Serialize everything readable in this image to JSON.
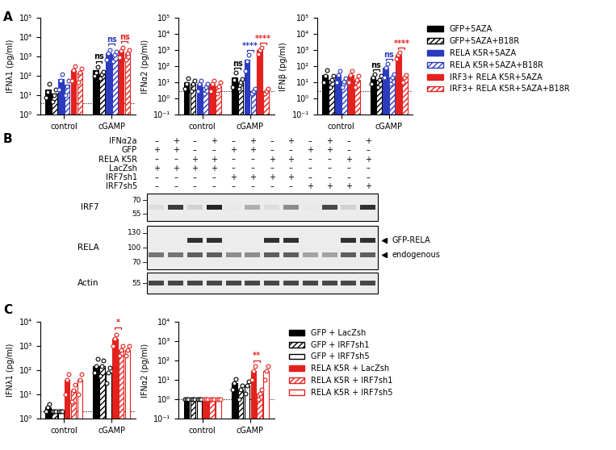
{
  "panel_labels": [
    "A",
    "B",
    "C"
  ],
  "chart_data": [
    {
      "type": "bar",
      "log": "y",
      "ylabel": "IFNλ1 (pg/ml)",
      "categories": [
        "control",
        "cGAMP"
      ],
      "ylim": [
        1,
        100000
      ],
      "yticks": [
        {
          "value": 1,
          "label": "10⁰"
        },
        {
          "value": 10,
          "label": "10¹"
        },
        {
          "value": 100,
          "label": "10²"
        },
        {
          "value": 1000,
          "label": "10³"
        },
        {
          "value": 10000,
          "label": "10⁴"
        },
        {
          "value": 100000,
          "label": "10⁵"
        }
      ],
      "detection_limit": 4,
      "series": [
        {
          "name": "GFP+5AZA",
          "color": "#000000",
          "line_style": "solid",
          "values": [
            20,
            200
          ],
          "points": [
            [
              8,
              15,
              40
            ],
            [
              100,
              150,
              300
            ]
          ]
        },
        {
          "name": "GFP+5AZA+B18R",
          "color": "#000000",
          "line_style": "hatched",
          "values": [
            12,
            120
          ],
          "points": [
            [
              5,
              10,
              20
            ],
            [
              80,
              120,
              160
            ]
          ]
        },
        {
          "name": "RELA K5R+5AZA",
          "color": "#2b3bbf",
          "line_style": "solid",
          "values": [
            70,
            1500
          ],
          "points": [
            [
              20,
              60,
              130
            ],
            [
              700,
              1500,
              2300
            ]
          ]
        },
        {
          "name": "RELA K5R+5AZA+B18R",
          "color": "#2b3bbf",
          "line_style": "hatched",
          "values": [
            35,
            1200
          ],
          "points": [
            [
              10,
              30,
              60
            ],
            [
              600,
              1200,
              1800
            ]
          ]
        },
        {
          "name": "IRF3+ RELA K5R+5AZA",
          "color": "#e3221d",
          "line_style": "solid",
          "values": [
            200,
            2000
          ],
          "points": [
            [
              60,
              200,
              340
            ],
            [
              900,
              2000,
              3100
            ]
          ]
        },
        {
          "name": "IRF3+ RELA K5R+5AZA+B18R",
          "color": "#e3221d",
          "line_style": "hatched",
          "values": [
            150,
            1500
          ],
          "points": [
            [
              50,
              150,
              250
            ],
            [
              700,
              1500,
              2300
            ]
          ]
        }
      ],
      "significance": [
        {
          "category": "cGAMP",
          "from": 0,
          "to": 1,
          "label": "ns"
        },
        {
          "category": "cGAMP",
          "from": 2,
          "to": 3,
          "label": "ns"
        },
        {
          "category": "cGAMP",
          "from": 4,
          "to": 5,
          "label": "ns"
        }
      ]
    },
    {
      "type": "bar",
      "log": "y",
      "ylabel": "IFNα2 (pg/ml)",
      "categories": [
        "control",
        "cGAMP"
      ],
      "ylim": [
        0.1,
        100000
      ],
      "yticks": [
        {
          "value": 0.1,
          "label": "10⁻¹"
        },
        {
          "value": 1,
          "label": "10⁰"
        },
        {
          "value": 10,
          "label": "10¹"
        },
        {
          "value": 100,
          "label": "10²"
        },
        {
          "value": 1000,
          "label": "10³"
        },
        {
          "value": 10000,
          "label": "10⁴"
        },
        {
          "value": 100000,
          "label": "10⁵"
        }
      ],
      "detection_limit": 3,
      "series": [
        {
          "name": "GFP+5AZA",
          "color": "#000000",
          "line_style": "solid",
          "values": [
            10,
            20
          ],
          "points": [
            [
              4,
              8,
              18
            ],
            [
              5,
              15,
              40
            ]
          ]
        },
        {
          "name": "GFP+5AZA+B18R",
          "color": "#000000",
          "line_style": "hatched",
          "values": [
            8,
            10
          ],
          "points": [
            [
              3,
              8,
              13
            ],
            [
              4,
              10,
              16
            ]
          ]
        },
        {
          "name": "RELA K5R+5AZA",
          "color": "#2b3bbf",
          "line_style": "solid",
          "values": [
            8,
            250
          ],
          "points": [
            [
              3,
              8,
              13
            ],
            [
              50,
              200,
              500
            ]
          ]
        },
        {
          "name": "RELA K5R+5AZA+B18R",
          "color": "#2b3bbf",
          "line_style": "hatched",
          "values": [
            5,
            3
          ],
          "points": [
            [
              2,
              5,
              8
            ],
            [
              2,
              3,
              4
            ]
          ]
        },
        {
          "name": "IRF3+ RELA K5R+5AZA",
          "color": "#e3221d",
          "line_style": "solid",
          "values": [
            8,
            1000
          ],
          "points": [
            [
              3,
              8,
              13
            ],
            [
              600,
              1000,
              1400
            ]
          ]
        },
        {
          "name": "IRF3+ RELA K5R+5AZA+B18R",
          "color": "#e3221d",
          "line_style": "hatched",
          "values": [
            6,
            3
          ],
          "points": [
            [
              2,
              6,
              10
            ],
            [
              2,
              3,
              4
            ]
          ]
        }
      ],
      "significance": [
        {
          "category": "cGAMP",
          "from": 0,
          "to": 1,
          "label": "ns"
        },
        {
          "category": "cGAMP",
          "from": 2,
          "to": 3,
          "label": "****"
        },
        {
          "category": "cGAMP",
          "from": 4,
          "to": 5,
          "label": "****"
        }
      ]
    },
    {
      "type": "bar",
      "log": "y",
      "ylabel": "IFNβ (pg/ml)",
      "categories": [
        "control",
        "cGAMP"
      ],
      "ylim": [
        0.1,
        100000
      ],
      "yticks": [
        {
          "value": 0.1,
          "label": "10⁻¹"
        },
        {
          "value": 1,
          "label": "10⁰"
        },
        {
          "value": 10,
          "label": "10¹"
        },
        {
          "value": 100,
          "label": "10²"
        },
        {
          "value": 1000,
          "label": "10³"
        },
        {
          "value": 10000,
          "label": "10⁴"
        },
        {
          "value": 100000,
          "label": "10⁵"
        }
      ],
      "detection_limit": 3,
      "legend": "upper left",
      "series": [
        {
          "name": "GFP+5AZA",
          "color": "#000000",
          "line_style": "solid",
          "values": [
            30,
            20
          ],
          "points": [
            [
              10,
              25,
              55
            ],
            [
              8,
              20,
              32
            ]
          ]
        },
        {
          "name": "GFP+5AZA+B18R",
          "color": "#000000",
          "line_style": "hatched",
          "values": [
            15,
            15
          ],
          "points": [
            [
              5,
              15,
              25
            ],
            [
              5,
              15,
              25
            ]
          ]
        },
        {
          "name": "RELA K5R+5AZA",
          "color": "#2b3bbf",
          "line_style": "solid",
          "values": [
            30,
            80
          ],
          "points": [
            [
              10,
              30,
              50
            ],
            [
              20,
              80,
              140
            ]
          ]
        },
        {
          "name": "RELA K5R+5AZA+B18R",
          "color": "#2b3bbf",
          "line_style": "hatched",
          "values": [
            12,
            20
          ],
          "points": [
            [
              5,
              12,
              19
            ],
            [
              8,
              20,
              32
            ]
          ]
        },
        {
          "name": "IRF3+ RELA K5R+5AZA",
          "color": "#e3221d",
          "line_style": "solid",
          "values": [
            30,
            500
          ],
          "points": [
            [
              10,
              30,
              50
            ],
            [
              300,
              500,
              700
            ]
          ]
        },
        {
          "name": "IRF3+ RELA K5R+5AZA+B18R",
          "color": "#e3221d",
          "line_style": "hatched",
          "values": [
            15,
            20
          ],
          "points": [
            [
              5,
              15,
              25
            ],
            [
              10,
              20,
              30
            ]
          ]
        }
      ],
      "significance": [
        {
          "category": "cGAMP",
          "from": 0,
          "to": 1,
          "label": "ns"
        },
        {
          "category": "cGAMP",
          "from": 2,
          "to": 3,
          "label": "ns"
        },
        {
          "category": "cGAMP",
          "from": 4,
          "to": 5,
          "label": "****"
        }
      ]
    },
    {
      "type": "bar",
      "log": "y",
      "ylabel": "IFNλ1 (pg/ml)",
      "categories": [
        "control",
        "cGAMP"
      ],
      "ylim": [
        1,
        10000
      ],
      "yticks": [
        {
          "value": 1,
          "label": "10⁰"
        },
        {
          "value": 10,
          "label": "10¹"
        },
        {
          "value": 100,
          "label": "10²"
        },
        {
          "value": 1000,
          "label": "10³"
        },
        {
          "value": 10000,
          "label": "10⁴"
        }
      ],
      "detection_limit": 2,
      "series": [
        {
          "name": "GFP + LacZsh",
          "color": "#000000",
          "line_style": "solid",
          "values": [
            3,
            150
          ],
          "points": [
            [
              2,
              3,
              4
            ],
            [
              80,
              150,
              300
            ]
          ]
        },
        {
          "name": "GFP + IRF7sh1",
          "color": "#000000",
          "line_style": "hatched",
          "values": [
            2,
            150
          ],
          "points": [
            [
              2,
              2,
              2
            ],
            [
              60,
              150,
              250
            ]
          ]
        },
        {
          "name": "GFP + IRF7sh5",
          "color": "#000000",
          "line_style": "open",
          "values": [
            2,
            80
          ],
          "points": [
            [
              2,
              2,
              2
            ],
            [
              30,
              80,
              130
            ]
          ]
        },
        {
          "name": "RELA K5R + LacZsh",
          "color": "#e3221d",
          "line_style": "solid",
          "values": [
            40,
            2000
          ],
          "points": [
            [
              10,
              40,
              70
            ],
            [
              1000,
              2000,
              3000
            ]
          ]
        },
        {
          "name": "RELA K5R + IRF7sh1",
          "color": "#e3221d",
          "line_style": "hatched",
          "values": [
            15,
            700
          ],
          "points": [
            [
              5,
              15,
              25
            ],
            [
              400,
              700,
              1000
            ]
          ]
        },
        {
          "name": "RELA K5R + IRF7sh5",
          "color": "#e3221d",
          "line_style": "open",
          "values": [
            40,
            700
          ],
          "points": [
            [
              10,
              40,
              70
            ],
            [
              400,
              700,
              1000
            ]
          ]
        }
      ],
      "significance": [
        {
          "category": "cGAMP",
          "from": 3,
          "to": 4,
          "label": "*"
        }
      ]
    },
    {
      "type": "bar",
      "log": "y",
      "ylabel": "IFNα2 (pg/ml)",
      "categories": [
        "control",
        "cGAMP"
      ],
      "ylim": [
        0.1,
        10000
      ],
      "yticks": [
        {
          "value": 0.1,
          "label": "10⁻¹"
        },
        {
          "value": 1,
          "label": "10⁰"
        },
        {
          "value": 10,
          "label": "10¹"
        },
        {
          "value": 100,
          "label": "10²"
        },
        {
          "value": 1000,
          "label": "10³"
        },
        {
          "value": 10000,
          "label": "10⁴"
        }
      ],
      "detection_limit": 1,
      "legend": "upper left",
      "series": [
        {
          "name": "GFP + LacZsh",
          "color": "#000000",
          "line_style": "solid",
          "values": [
            1,
            7
          ],
          "points": [
            [
              1,
              1,
              1
            ],
            [
              3,
              7,
              11
            ]
          ]
        },
        {
          "name": "GFP + IRF7sh1",
          "color": "#000000",
          "line_style": "hatched",
          "values": [
            1,
            3
          ],
          "points": [
            [
              1,
              1,
              1
            ],
            [
              1,
              3,
              5
            ]
          ]
        },
        {
          "name": "GFP + IRF7sh5",
          "color": "#000000",
          "line_style": "open",
          "values": [
            1,
            5
          ],
          "points": [
            [
              1,
              1,
              1
            ],
            [
              2,
              5,
              8
            ]
          ]
        },
        {
          "name": "RELA K5R + LacZsh",
          "color": "#e3221d",
          "line_style": "solid",
          "values": [
            1,
            30
          ],
          "points": [
            [
              1,
              1,
              1
            ],
            [
              10,
              30,
              50
            ]
          ]
        },
        {
          "name": "RELA K5R + IRF7sh1",
          "color": "#e3221d",
          "line_style": "hatched",
          "values": [
            1,
            2
          ],
          "points": [
            [
              1,
              1,
              1
            ],
            [
              1,
              2,
              3
            ]
          ]
        },
        {
          "name": "RELA K5R + IRF7sh5",
          "color": "#e3221d",
          "line_style": "open",
          "values": [
            1,
            30
          ],
          "points": [
            [
              1,
              1,
              1
            ],
            [
              10,
              30,
              50
            ]
          ]
        }
      ],
      "significance": [
        {
          "category": "cGAMP",
          "from": 3,
          "to": 4,
          "label": "**"
        }
      ]
    }
  ],
  "blot": {
    "conditions": [
      {
        "label": "IFNα2a",
        "signs": [
          "–",
          "+",
          "–",
          "+",
          "–",
          "+",
          "–",
          "+",
          "–",
          "+",
          "–",
          "+"
        ]
      },
      {
        "label": "GFP",
        "signs": [
          "+",
          "+",
          "–",
          "–",
          "+",
          "+",
          "–",
          "–",
          "+",
          "+",
          "–",
          "–"
        ]
      },
      {
        "label": "RELA K5R",
        "signs": [
          "–",
          "–",
          "+",
          "+",
          "–",
          "–",
          "+",
          "+",
          "–",
          "–",
          "+",
          "+"
        ]
      },
      {
        "label": "LacZsh",
        "signs": [
          "+",
          "+",
          "+",
          "+",
          "–",
          "–",
          "–",
          "–",
          "–",
          "–",
          "–",
          "–"
        ]
      },
      {
        "label": "IRF7sh1",
        "signs": [
          "–",
          "–",
          "–",
          "–",
          "+",
          "+",
          "+",
          "+",
          "–",
          "–",
          "–",
          "–"
        ]
      },
      {
        "label": "IRF7sh5",
        "signs": [
          "–",
          "–",
          "–",
          "–",
          "–",
          "–",
          "–",
          "–",
          "+",
          "+",
          "+",
          "+"
        ]
      }
    ],
    "panels": [
      {
        "name": "IRF7",
        "markers": [
          70,
          55
        ],
        "bands": [
          {
            "intensities": [
              0.15,
              0.85,
              0.2,
              0.95,
              0.1,
              0.35,
              0.15,
              0.5,
              0.1,
              0.8,
              0.2,
              0.9
            ]
          }
        ]
      },
      {
        "name": "RELA",
        "markers": [
          130,
          100,
          70
        ],
        "bands": [
          {
            "label": "GFP-RELA",
            "intensities": [
              0,
              0,
              0.9,
              0.9,
              0,
              0,
              0.9,
              0.9,
              0,
              0,
              0.9,
              0.9
            ]
          },
          {
            "label": "endogenous",
            "intensities": [
              0.6,
              0.6,
              0.7,
              0.7,
              0.5,
              0.5,
              0.7,
              0.7,
              0.4,
              0.4,
              0.7,
              0.7
            ]
          }
        ]
      },
      {
        "name": "Actin",
        "markers": [
          55
        ],
        "bands": [
          {
            "intensities": [
              0.8,
              0.8,
              0.8,
              0.8,
              0.8,
              0.8,
              0.8,
              0.8,
              0.8,
              0.8,
              0.8,
              0.8
            ]
          }
        ]
      }
    ]
  }
}
